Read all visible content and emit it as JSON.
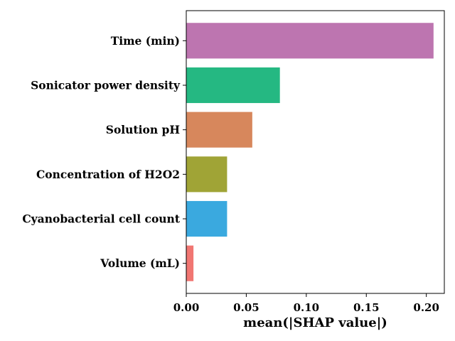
{
  "chart_data": {
    "type": "bar",
    "orientation": "horizontal",
    "title": "",
    "xlabel": "mean(|SHAP value|)",
    "ylabel": "",
    "categories": [
      "Time (min)",
      "Sonicator power density",
      "Solution pH",
      "Concentration of H2O2",
      "Cyanobacterial cell count",
      "Volume (mL)"
    ],
    "values": [
      0.206,
      0.078,
      0.055,
      0.034,
      0.034,
      0.006
    ],
    "colors": [
      "#bd75b0",
      "#25b882",
      "#d7875c",
      "#a0a436",
      "#3aa9df",
      "#f17672"
    ],
    "xlim": [
      0,
      0.215
    ],
    "xticks": [
      0.0,
      0.05,
      0.1,
      0.15,
      0.2
    ],
    "xtick_labels": [
      "0.00",
      "0.05",
      "0.10",
      "0.15",
      "0.20"
    ],
    "grid": false,
    "legend": "none"
  }
}
